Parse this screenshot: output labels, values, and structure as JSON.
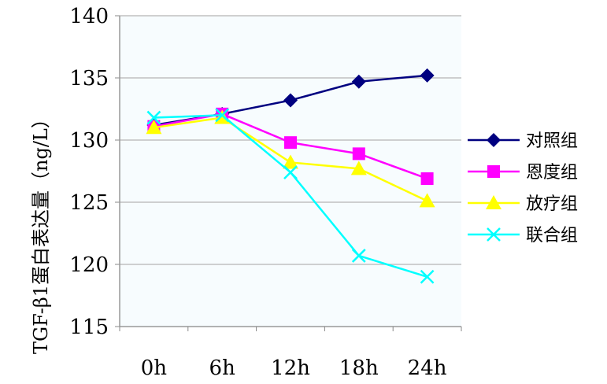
{
  "chart_data": {
    "type": "line",
    "title": "",
    "xlabel": "",
    "ylabel": "TGF-β1蛋白表达量（ng/L）",
    "categories": [
      "0h",
      "6h",
      "12h",
      "18h",
      "24h"
    ],
    "ylim": [
      115,
      140
    ],
    "yticks": [
      115,
      120,
      125,
      130,
      135,
      140
    ],
    "grid": true,
    "legend_position": "right",
    "series": [
      {
        "name": "对照组",
        "color": "#000080",
        "marker": "diamond",
        "values": [
          131.2,
          132.1,
          133.2,
          134.7,
          135.2
        ]
      },
      {
        "name": "恩度组",
        "color": "#ff00ff",
        "marker": "square",
        "values": [
          131.1,
          132.1,
          129.8,
          128.9,
          126.9
        ]
      },
      {
        "name": "放疗组",
        "color": "#ffff00",
        "marker": "triangle",
        "values": [
          131.0,
          131.8,
          128.2,
          127.7,
          125.1
        ]
      },
      {
        "name": "联合组",
        "color": "#00ffff",
        "marker": "x",
        "values": [
          131.8,
          132.0,
          127.4,
          120.7,
          119.0
        ]
      }
    ]
  }
}
